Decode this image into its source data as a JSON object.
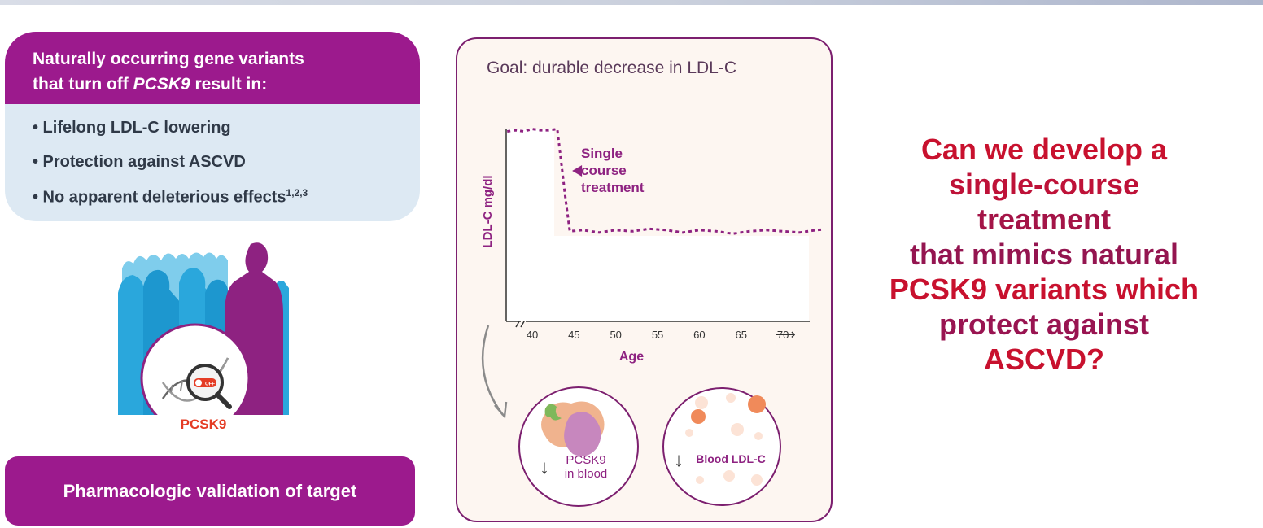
{
  "header": {
    "line1": "Naturally occurring gene variants",
    "line2_prefix": "that turn off ",
    "line2_gene": "PCSK9",
    "line2_suffix": " result in:"
  },
  "bullets": [
    {
      "text": "• Lifelong LDL-C lowering"
    },
    {
      "text": "• Protection against ASCVD"
    },
    {
      "text": "• No apparent deleterious effects",
      "sup": "1,2,3"
    }
  ],
  "badge_label": "PCSK9",
  "switch_label": "OFF",
  "validation_label": "Pharmacologic validation of target",
  "panel": {
    "goal": "Goal: durable decrease in LDL-C",
    "annotation": [
      "Single",
      "course",
      "treatment"
    ],
    "blood_pcsk9": [
      "PCSK9",
      "in blood"
    ],
    "blood_ldl": "Blood LDL-C",
    "arrow_glyph": "↓"
  },
  "chart_data": {
    "type": "line",
    "title": "",
    "xlabel": "Age",
    "ylabel": "LDL-C mg/dl",
    "x_ticks": [
      "40",
      "45",
      "50",
      "55",
      "60",
      "65",
      "70"
    ],
    "x_axis_arrow": "⟶",
    "ylim": [
      0,
      1
    ],
    "series": [
      {
        "style": "dotted",
        "x": [
          37,
          38,
          39,
          40,
          41,
          42,
          43,
          43.5,
          44,
          44.5,
          46,
          48,
          50,
          52,
          54,
          56,
          58,
          60,
          62,
          64,
          66,
          68,
          70,
          72,
          74,
          76
        ],
        "y": [
          0.97,
          0.98,
          0.97,
          0.99,
          0.98,
          0.98,
          0.99,
          0.7,
          0.4,
          0.14,
          0.15,
          0.13,
          0.15,
          0.14,
          0.16,
          0.15,
          0.13,
          0.15,
          0.14,
          0.12,
          0.14,
          0.15,
          0.14,
          0.13,
          0.15,
          0.16
        ]
      }
    ],
    "annotation_marker_age": 44,
    "colors": {
      "line": "#8e2281",
      "axis": "#333333"
    }
  },
  "question": {
    "lines": [
      "Can we develop a",
      "single-course",
      "treatment",
      "that mimics natural",
      "PCSK9 variants which",
      "protect against",
      "ASCVD?"
    ]
  },
  "colors": {
    "purple": "#9c1a8d",
    "panel_border": "#7c1f6f",
    "crowd_blue": "#29a6db",
    "crowd_highlight": "#8e2281",
    "badge_red": "#e43c25",
    "question_red": "#d0102a",
    "question_maroon": "#7b1757"
  }
}
